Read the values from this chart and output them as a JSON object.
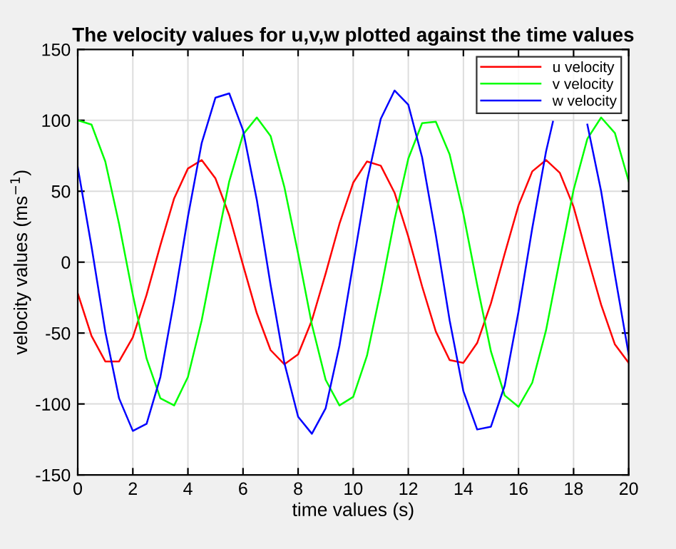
{
  "chart_data": {
    "type": "line",
    "title": "The velocity values for u,v,w plotted against the time values",
    "xlabel": "time values (s)",
    "ylabel": "velocity values (ms$^{−1}$)",
    "x": [
      0,
      0.5,
      1,
      1.5,
      2,
      2.5,
      3,
      3.5,
      4,
      4.5,
      5,
      5.5,
      6,
      6.5,
      7,
      7.5,
      8,
      8.5,
      9,
      9.5,
      10,
      10.5,
      11,
      11.5,
      12,
      12.5,
      13,
      13.5,
      14,
      14.5,
      15,
      15.5,
      16,
      16.5,
      17,
      17.5,
      18,
      18.5,
      19,
      19.5,
      20
    ],
    "series": [
      {
        "name": "u velocity",
        "color": "#ff0000",
        "values": [
          -22,
          -52,
          -70,
          -70,
          -53,
          -23,
          12,
          45,
          66,
          72,
          59,
          33,
          -2,
          -36,
          -62,
          -72,
          -65,
          -41,
          -8,
          27,
          56,
          71,
          68,
          49,
          18,
          -17,
          -49,
          -69,
          -71,
          -57,
          -29,
          6,
          40,
          64,
          72,
          63,
          39,
          4,
          -30,
          -58,
          -71
        ]
      },
      {
        "name": "v velocity",
        "color": "#00ff00",
        "values": [
          100,
          97,
          71,
          27,
          -23,
          -68,
          -96,
          -101,
          -81,
          -41,
          9,
          57,
          90,
          102,
          89,
          53,
          6,
          -44,
          -83,
          -101,
          -95,
          -66,
          -20,
          30,
          73,
          98,
          99,
          76,
          34,
          -16,
          -63,
          -94,
          -102,
          -85,
          -48,
          2,
          51,
          87,
          102,
          91,
          57
        ]
      },
      {
        "name": "w velocity",
        "color": "#0000ff",
        "x": [
          0,
          0.5,
          1,
          1.5,
          2,
          2.5,
          3,
          3.5,
          4,
          4.5,
          5,
          5.5,
          6,
          6.5,
          7,
          7.5,
          8,
          8.5,
          9,
          9.5,
          10,
          10.5,
          11,
          11.5,
          12,
          12.5,
          13,
          13.5,
          14,
          14.5,
          15,
          15.5,
          16,
          16.5,
          17,
          17.25,
          17.5,
          18,
          18.5,
          19,
          19.5,
          20
        ],
        "values": [
          67,
          11,
          -49,
          -96,
          -119,
          -114,
          -81,
          -27,
          32,
          84,
          116,
          119,
          93,
          44,
          -16,
          -71,
          -109,
          -121,
          -103,
          -59,
          -1,
          57,
          101,
          121,
          111,
          74,
          19,
          -41,
          -91,
          -118,
          -116,
          -87,
          -35,
          24,
          78,
          99,
          null,
          null,
          97,
          50,
          -9,
          -65
        ]
      }
    ],
    "xlim": [
      0,
      20
    ],
    "ylim": [
      -150,
      150
    ],
    "xticks": [
      0,
      2,
      4,
      6,
      8,
      10,
      12,
      14,
      16,
      18,
      20
    ],
    "yticks": [
      -150,
      -100,
      -50,
      0,
      50,
      100,
      150
    ],
    "grid": true,
    "legend": "top right",
    "line_style": "solid",
    "marker": "none"
  }
}
